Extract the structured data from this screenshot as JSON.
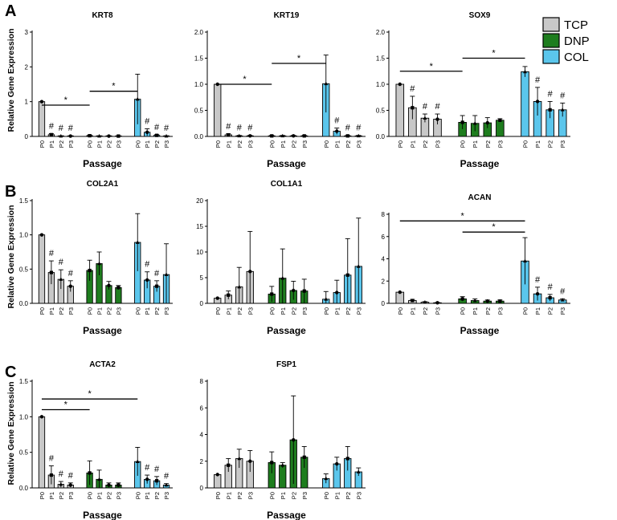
{
  "figure": {
    "panel_letters": [
      "A",
      "B",
      "C"
    ],
    "y_axis_title": "Relative Gene Expression",
    "x_axis_title": "Passage",
    "legend": {
      "items": [
        {
          "label": "TCP",
          "color": "#c8c8c8"
        },
        {
          "label": "DNP",
          "color": "#1e7d1e"
        },
        {
          "label": "COL",
          "color": "#5bc6ec"
        }
      ]
    }
  },
  "chart_data": [
    {
      "type": "bar",
      "panel": "A",
      "title": "KRT8",
      "xlabel": "Passage",
      "ylabel": "Relative Gene Expression",
      "ylim": [
        0,
        3
      ],
      "yticks": [
        "0",
        "1",
        "2",
        "3"
      ],
      "categories": [
        "P0",
        "P1",
        "P2",
        "P3"
      ],
      "series": [
        {
          "name": "TCP",
          "values": [
            1.0,
            0.05,
            0.01,
            0.01
          ],
          "errors": [
            0.0,
            0.03,
            0.01,
            0.01
          ],
          "sig": [
            "",
            "#",
            "#",
            "#"
          ]
        },
        {
          "name": "DNP",
          "values": [
            0.02,
            0.01,
            0.01,
            0.01
          ],
          "errors": [
            0.02,
            0.01,
            0.01,
            0.01
          ],
          "sig": [
            "",
            "",
            "",
            ""
          ]
        },
        {
          "name": "COL",
          "values": [
            1.07,
            0.12,
            0.03,
            0.01
          ],
          "errors": [
            0.72,
            0.1,
            0.02,
            0.01
          ],
          "sig": [
            "",
            "#",
            "#",
            "#"
          ]
        }
      ],
      "brackets": [
        {
          "from": "TCP P0",
          "to": "DNP P0",
          "label": "*",
          "y": 0.9
        },
        {
          "from": "DNP P0",
          "to": "COL P0",
          "label": "*",
          "y": 1.3
        }
      ]
    },
    {
      "type": "bar",
      "panel": "A",
      "title": "KRT19",
      "xlabel": "Passage",
      "ylabel": "Relative Gene Expression",
      "ylim": [
        0,
        2.0
      ],
      "yticks": [
        "0.0",
        "0.5",
        "1.0",
        "1.5",
        "2.0"
      ],
      "categories": [
        "P0",
        "P1",
        "P2",
        "P3"
      ],
      "series": [
        {
          "name": "TCP",
          "values": [
            1.0,
            0.03,
            0.01,
            0.01
          ],
          "errors": [
            0.0,
            0.02,
            0.01,
            0.01
          ],
          "sig": [
            "",
            "#",
            "#",
            "#"
          ]
        },
        {
          "name": "DNP",
          "values": [
            0.01,
            0.01,
            0.01,
            0.01
          ],
          "errors": [
            0.01,
            0.01,
            0.01,
            0.01
          ],
          "sig": [
            "",
            "",
            "",
            ""
          ]
        },
        {
          "name": "COL",
          "values": [
            1.01,
            0.1,
            0.01,
            0.01
          ],
          "errors": [
            0.55,
            0.06,
            0.01,
            0.01
          ],
          "sig": [
            "",
            "#",
            "#",
            "#"
          ]
        }
      ],
      "brackets": [
        {
          "from": "TCP P0",
          "to": "DNP P0",
          "label": "*",
          "y": 1.0
        },
        {
          "from": "DNP P0",
          "to": "COL P0",
          "label": "*",
          "y": 1.4
        }
      ]
    },
    {
      "type": "bar",
      "panel": "A",
      "title": "SOX9",
      "xlabel": "Passage",
      "ylabel": "Relative Gene Expression",
      "ylim": [
        0,
        2.0
      ],
      "yticks": [
        "0.0",
        "0.5",
        "1.0",
        "1.5",
        "2.0"
      ],
      "categories": [
        "P0",
        "P1",
        "P2",
        "P3"
      ],
      "series": [
        {
          "name": "TCP",
          "values": [
            1.0,
            0.55,
            0.35,
            0.33
          ],
          "errors": [
            0.0,
            0.22,
            0.08,
            0.1
          ],
          "sig": [
            "",
            "#",
            "#",
            "#"
          ]
        },
        {
          "name": "DNP",
          "values": [
            0.27,
            0.25,
            0.26,
            0.31
          ],
          "errors": [
            0.13,
            0.15,
            0.1,
            0.03
          ],
          "sig": [
            "",
            "",
            "",
            ""
          ]
        },
        {
          "name": "COL",
          "values": [
            1.24,
            0.67,
            0.51,
            0.51
          ],
          "errors": [
            0.1,
            0.27,
            0.16,
            0.13
          ],
          "sig": [
            "",
            "#",
            "#",
            "#"
          ]
        }
      ],
      "brackets": [
        {
          "from": "TCP P0",
          "to": "DNP P0",
          "label": "*",
          "y": 1.25
        },
        {
          "from": "DNP P0",
          "to": "COL P0",
          "label": "*",
          "y": 1.5
        }
      ]
    },
    {
      "type": "bar",
      "panel": "B",
      "title": "COL2A1",
      "xlabel": "Passage",
      "ylabel": "Relative Gene Expression",
      "ylim": [
        0,
        1.5
      ],
      "yticks": [
        "0.0",
        "0.5",
        "1.0",
        "1.5"
      ],
      "categories": [
        "P0",
        "P1",
        "P2",
        "P3"
      ],
      "series": [
        {
          "name": "TCP",
          "values": [
            1.0,
            0.45,
            0.35,
            0.25
          ],
          "errors": [
            0.0,
            0.17,
            0.14,
            0.08
          ],
          "sig": [
            "",
            "#",
            "#",
            "#"
          ]
        },
        {
          "name": "DNP",
          "values": [
            0.48,
            0.58,
            0.26,
            0.23
          ],
          "errors": [
            0.15,
            0.17,
            0.06,
            0.03
          ],
          "sig": [
            "",
            "",
            "",
            ""
          ]
        },
        {
          "name": "COL",
          "values": [
            0.89,
            0.34,
            0.25,
            0.42
          ],
          "errors": [
            0.42,
            0.12,
            0.08,
            0.45
          ],
          "sig": [
            "",
            "#",
            "#",
            ""
          ]
        }
      ],
      "brackets": []
    },
    {
      "type": "bar",
      "panel": "B",
      "title": "COL1A1",
      "xlabel": "Passage",
      "ylabel": "Relative Gene Expression",
      "ylim": [
        0,
        20
      ],
      "yticks": [
        "0",
        "5",
        "10",
        "15",
        "20"
      ],
      "categories": [
        "P0",
        "P1",
        "P2",
        "P3"
      ],
      "series": [
        {
          "name": "TCP",
          "values": [
            1.0,
            1.6,
            3.2,
            6.2
          ],
          "errors": [
            0.0,
            0.8,
            3.8,
            7.8
          ],
          "sig": [
            "",
            "",
            "",
            ""
          ]
        },
        {
          "name": "DNP",
          "values": [
            1.8,
            4.9,
            2.5,
            2.4
          ],
          "errors": [
            1.5,
            5.7,
            1.8,
            2.3
          ],
          "sig": [
            "",
            "",
            "",
            ""
          ]
        },
        {
          "name": "COL",
          "values": [
            0.8,
            2.1,
            5.5,
            7.2
          ],
          "errors": [
            1.5,
            2.4,
            7.1,
            9.4
          ],
          "sig": [
            "",
            "",
            "",
            ""
          ]
        }
      ],
      "brackets": []
    },
    {
      "type": "bar",
      "panel": "B",
      "title": "ACAN",
      "xlabel": "Passage",
      "ylabel": "Relative Gene Expression",
      "ylim": [
        0,
        8
      ],
      "yticks": [
        "0",
        "2",
        "4",
        "6",
        "8"
      ],
      "categories": [
        "P0",
        "P1",
        "P2",
        "P3"
      ],
      "series": [
        {
          "name": "TCP",
          "values": [
            1.0,
            0.25,
            0.1,
            0.05
          ],
          "errors": [
            0.0,
            0.1,
            0.05,
            0.03
          ],
          "sig": [
            "",
            "",
            "",
            ""
          ]
        },
        {
          "name": "DNP",
          "values": [
            0.4,
            0.25,
            0.2,
            0.2
          ],
          "errors": [
            0.2,
            0.15,
            0.1,
            0.1
          ],
          "sig": [
            "",
            "",
            "",
            ""
          ]
        },
        {
          "name": "COL",
          "values": [
            3.8,
            0.85,
            0.5,
            0.3
          ],
          "errors": [
            2.1,
            0.6,
            0.3,
            0.1
          ],
          "sig": [
            "",
            "#",
            "#",
            "#"
          ]
        }
      ],
      "brackets": [
        {
          "from": "TCP P0",
          "to": "COL P0",
          "label": "*",
          "y": 7.4
        },
        {
          "from": "DNP P0",
          "to": "COL P0",
          "label": "*",
          "y": 6.4
        }
      ]
    },
    {
      "type": "bar",
      "panel": "C",
      "title": "ACTA2",
      "xlabel": "Passage",
      "ylabel": "Relative Gene Expression",
      "ylim": [
        0,
        1.5
      ],
      "yticks": [
        "0.0",
        "0.5",
        "1.0",
        "1.5"
      ],
      "categories": [
        "P0",
        "P1",
        "P2",
        "P3"
      ],
      "series": [
        {
          "name": "TCP",
          "values": [
            1.0,
            0.18,
            0.05,
            0.04
          ],
          "errors": [
            0.0,
            0.13,
            0.04,
            0.03
          ],
          "sig": [
            "",
            "#",
            "#",
            "#"
          ]
        },
        {
          "name": "DNP",
          "values": [
            0.21,
            0.12,
            0.04,
            0.04
          ],
          "errors": [
            0.17,
            0.13,
            0.03,
            0.03
          ],
          "sig": [
            "",
            "",
            "",
            ""
          ]
        },
        {
          "name": "COL",
          "values": [
            0.37,
            0.12,
            0.1,
            0.04
          ],
          "errors": [
            0.2,
            0.06,
            0.06,
            0.02
          ],
          "sig": [
            "",
            "#",
            "#",
            "#"
          ]
        }
      ],
      "brackets": [
        {
          "from": "TCP P0",
          "to": "DNP P0",
          "label": "*",
          "y": 1.1
        },
        {
          "from": "TCP P0",
          "to": "COL P0",
          "label": "*",
          "y": 1.25
        }
      ]
    },
    {
      "type": "bar",
      "panel": "C",
      "title": "FSP1",
      "xlabel": "Passage",
      "ylabel": "Relative Gene Expression",
      "ylim": [
        0,
        8
      ],
      "yticks": [
        "0",
        "2",
        "4",
        "6",
        "8"
      ],
      "categories": [
        "P0",
        "P1",
        "P2",
        "P3"
      ],
      "series": [
        {
          "name": "TCP",
          "values": [
            1.0,
            1.7,
            2.2,
            2.0
          ],
          "errors": [
            0.0,
            0.5,
            0.7,
            0.8
          ],
          "sig": [
            "",
            "",
            "",
            ""
          ]
        },
        {
          "name": "DNP",
          "values": [
            1.9,
            1.7,
            3.6,
            2.3
          ],
          "errors": [
            0.8,
            0.2,
            3.3,
            0.8
          ],
          "sig": [
            "",
            "",
            "",
            ""
          ]
        },
        {
          "name": "COL",
          "values": [
            0.7,
            1.8,
            2.2,
            1.2
          ],
          "errors": [
            0.35,
            0.5,
            0.9,
            0.3
          ],
          "sig": [
            "",
            "",
            "",
            ""
          ]
        }
      ],
      "brackets": []
    }
  ]
}
